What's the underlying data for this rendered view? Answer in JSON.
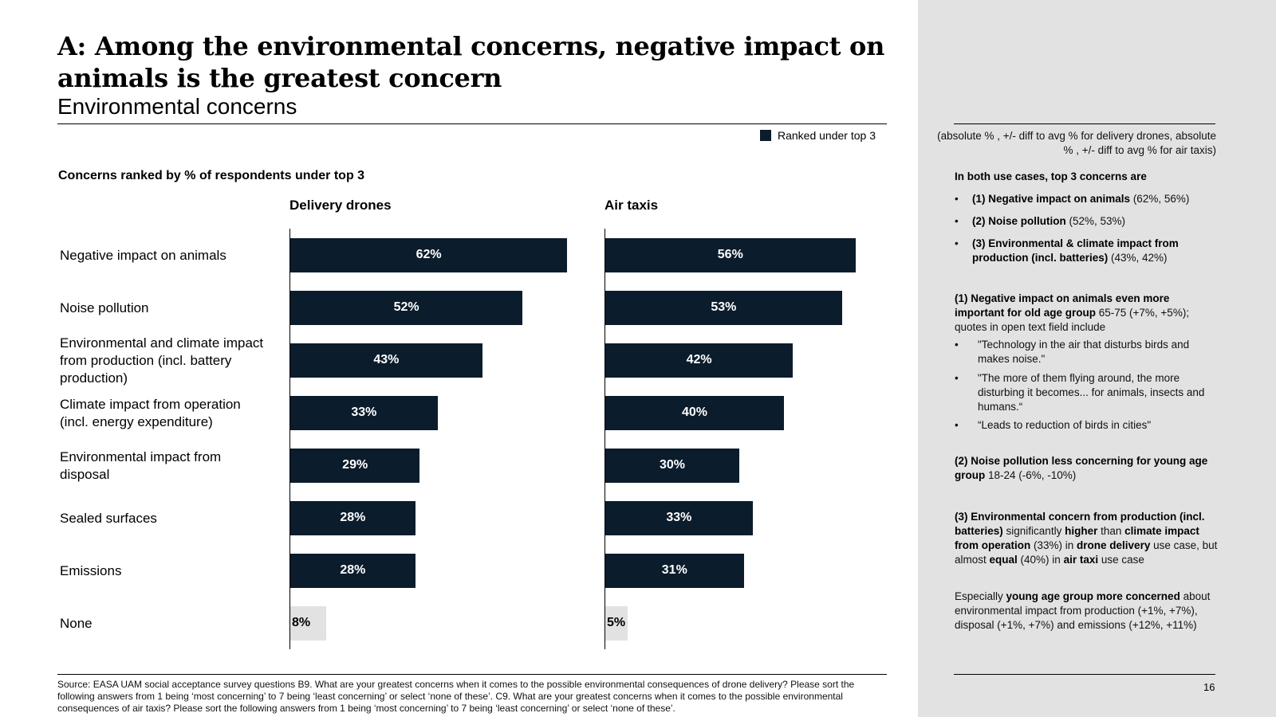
{
  "header": {
    "title": "A: Among the environmental concerns, negative impact on animals is the greatest concern",
    "subtitle": "Environmental concerns"
  },
  "legend": {
    "label": "Ranked under top 3",
    "color": "#0b1c2c"
  },
  "chart_data": {
    "type": "bar",
    "orientation": "horizontal",
    "title": "Concerns ranked by % of respondents under top 3",
    "categories": [
      "Negative impact on animals",
      "Noise pollution",
      "Environmental and climate impact from production (incl. battery production)",
      "Climate impact from operation (incl. energy expenditure)",
      "Environmental impact from disposal",
      "Sealed surfaces",
      "Emissions",
      "None"
    ],
    "series": [
      {
        "name": "Delivery drones",
        "values": [
          62,
          52,
          43,
          33,
          29,
          28,
          28,
          8
        ],
        "labels": [
          "62%",
          "52%",
          "43%",
          "33%",
          "29%",
          "28%",
          "28%",
          "8%"
        ]
      },
      {
        "name": "Air taxis",
        "values": [
          56,
          53,
          42,
          40,
          30,
          33,
          31,
          5
        ],
        "labels": [
          "56%",
          "53%",
          "42%",
          "40%",
          "30%",
          "33%",
          "31%",
          "5%"
        ]
      }
    ],
    "unit": "%",
    "bar_color": "#0b1c2c",
    "none_color": "#e2e2e2",
    "legend_position": "top-right"
  },
  "sidebar": {
    "note": "(absolute % , +/- diff to avg % for delivery drones, absolute % , +/- diff to avg % for air taxis)",
    "summary": {
      "heading": "In both use cases, top 3 concerns are",
      "items": [
        {
          "bold": "(1) Negative impact on animals",
          "rest": " (62%, 56%)"
        },
        {
          "bold": "(2) Noise pollution",
          "rest": " (52%, 53%)"
        },
        {
          "bold": "(3) Environmental & climate impact from production (incl. batteries)",
          "rest": " (43%, 42%)"
        }
      ]
    },
    "animals": {
      "bold": "(1) Negative impact on animals even more important for old age group",
      "rest": " 65-75 (+7%, +5%); quotes in open text field include",
      "quotes": [
        "\"Technology in the air that disturbs birds and makes noise.\"",
        " \"The more of them flying around, the more disturbing it becomes... for animals, insects and humans.“",
        "“Leads to reduction of birds in cities\""
      ]
    },
    "noise": {
      "bold": "(2) Noise pollution less concerning for young age group",
      "rest": " 18-24 (-6%, -10%)"
    },
    "production": {
      "p1": "(3) Environmental concern from production (incl. batteries)",
      "p2": " significantly ",
      "p3": "higher",
      "p4": " than ",
      "p5": "climate impact from operation",
      "p6": " (33%) in ",
      "p7": "drone delivery",
      "p8": " use case, but almost ",
      "p9": "equal",
      "p10": " (40%) in ",
      "p11": "air taxi",
      "p12": " use case"
    },
    "young": {
      "p1": "Especially ",
      "p2": "young age group more concerned",
      "p3": " about environmental impact from production (+1%, +7%), disposal (+1%, +7%) and emissions (+12%, +11%)"
    }
  },
  "footer": {
    "source": "Source: EASA UAM social acceptance survey questions B9. What are your greatest concerns when it comes to the possible environmental consequences of drone delivery? Please sort the following answers from 1 being ‘most concerning’ to 7 being ‘least concerning’ or select ‘none of these’. C9. What are your greatest concerns when it comes to the possible environmental consequences of air taxis? Please sort the following answers from 1 being ‘most concerning’ to 7 being ‘least concerning’ or select ‘none of these’.",
    "page_number": "16"
  }
}
